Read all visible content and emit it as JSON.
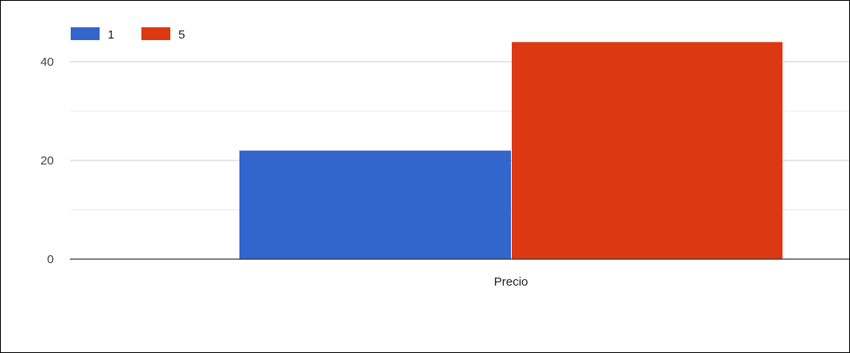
{
  "chart_data": {
    "type": "bar",
    "categories": [
      "Precio"
    ],
    "series": [
      {
        "name": "1",
        "values": [
          22
        ],
        "color": "#3366cc"
      },
      {
        "name": "5",
        "values": [
          44
        ],
        "color": "#dc3912"
      }
    ],
    "ylim": [
      0,
      48
    ],
    "yticks": [
      0,
      20,
      40
    ],
    "grid": true,
    "legend": "top-left"
  }
}
